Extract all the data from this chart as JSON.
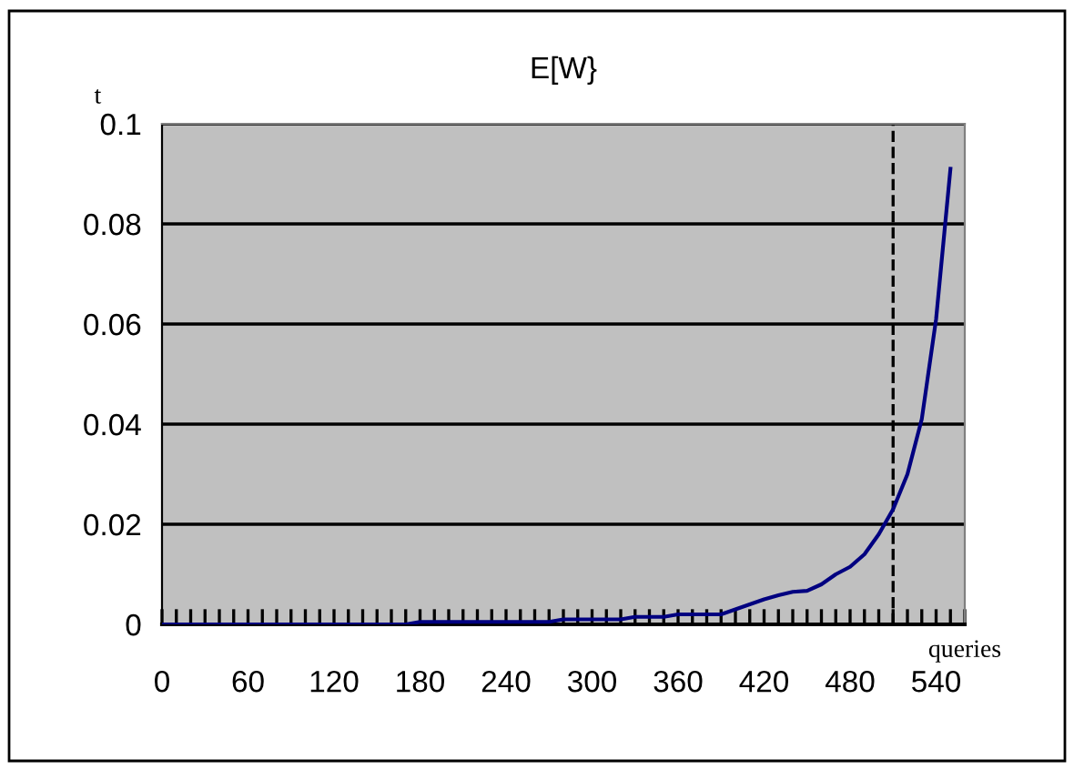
{
  "chart_data": {
    "type": "line",
    "title": "E[W}",
    "ylabel": "t",
    "xlabel": "queries",
    "x": [
      0,
      10,
      20,
      30,
      40,
      50,
      60,
      70,
      80,
      90,
      100,
      110,
      120,
      130,
      140,
      150,
      160,
      170,
      180,
      190,
      200,
      210,
      220,
      230,
      240,
      250,
      260,
      270,
      280,
      290,
      300,
      310,
      320,
      330,
      340,
      350,
      360,
      370,
      380,
      390,
      400,
      410,
      420,
      430,
      440,
      450,
      460,
      470,
      480,
      490,
      500,
      510,
      520,
      530,
      540,
      550
    ],
    "series": [
      {
        "color": "#000080",
        "values": [
          0,
          0,
          0,
          0,
          0,
          0,
          0,
          0,
          0,
          0,
          0,
          0,
          0,
          0,
          0,
          0,
          0,
          0,
          0.0005,
          0.0005,
          0.0005,
          0.0005,
          0.0005,
          0.0005,
          0.0005,
          0.0005,
          0.0005,
          0.0005,
          0.001,
          0.001,
          0.001,
          0.001,
          0.001,
          0.0015,
          0.0015,
          0.0015,
          0.002,
          0.002,
          0.002,
          0.002,
          0.003,
          0.004,
          0.005,
          0.0058,
          0.0065,
          0.0067,
          0.008,
          0.01,
          0.0115,
          0.014,
          0.018,
          0.023,
          0.03,
          0.041,
          0.061,
          0.091
        ]
      }
    ],
    "xlim": [
      0,
      560
    ],
    "xticks": [
      0,
      {
        "value": 10,
        "label": null
      },
      {
        "value": 20,
        "label": null
      },
      {
        "value": 30,
        "label": null
      },
      {
        "value": 40,
        "label": null
      },
      {
        "value": 50,
        "label": null
      },
      60,
      {
        "value": 70,
        "label": null
      },
      {
        "value": 80,
        "label": null
      },
      {
        "value": 90,
        "label": null
      },
      {
        "value": 100,
        "label": null
      },
      {
        "value": 110,
        "label": null
      },
      120,
      {
        "value": 130,
        "label": null
      },
      {
        "value": 140,
        "label": null
      },
      {
        "value": 150,
        "label": null
      },
      {
        "value": 160,
        "label": null
      },
      {
        "value": 170,
        "label": null
      },
      180,
      {
        "value": 190,
        "label": null
      },
      {
        "value": 200,
        "label": null
      },
      {
        "value": 210,
        "label": null
      },
      {
        "value": 220,
        "label": null
      },
      {
        "value": 230,
        "label": null
      },
      240,
      {
        "value": 250,
        "label": null
      },
      {
        "value": 260,
        "label": null
      },
      {
        "value": 270,
        "label": null
      },
      {
        "value": 280,
        "label": null
      },
      {
        "value": 290,
        "label": null
      },
      300,
      {
        "value": 310,
        "label": null
      },
      {
        "value": 320,
        "label": null
      },
      {
        "value": 330,
        "label": null
      },
      {
        "value": 340,
        "label": null
      },
      {
        "value": 350,
        "label": null
      },
      360,
      {
        "value": 370,
        "label": null
      },
      {
        "value": 380,
        "label": null
      },
      {
        "value": 390,
        "label": null
      },
      {
        "value": 400,
        "label": null
      },
      {
        "value": 410,
        "label": null
      },
      420,
      {
        "value": 430,
        "label": null
      },
      {
        "value": 440,
        "label": null
      },
      {
        "value": 450,
        "label": null
      },
      {
        "value": 460,
        "label": null
      },
      {
        "value": 470,
        "label": null
      },
      480,
      {
        "value": 490,
        "label": null
      },
      {
        "value": 500,
        "label": null
      },
      {
        "value": 510,
        "label": null
      },
      {
        "value": 520,
        "label": null
      },
      {
        "value": 530,
        "label": null
      },
      540,
      {
        "value": 550,
        "label": null
      },
      {
        "value": 560,
        "label": null
      }
    ],
    "ylim": [
      0,
      0.1
    ],
    "yticks": [
      0,
      0.02,
      0.04,
      0.06,
      0.08,
      0.1
    ],
    "grid": "y",
    "legend": false,
    "marker": "none",
    "line_style": "solid",
    "ref_lines": [
      {
        "axis": "x",
        "value": 510,
        "color": "#000000",
        "line_style": "dashed"
      }
    ]
  }
}
